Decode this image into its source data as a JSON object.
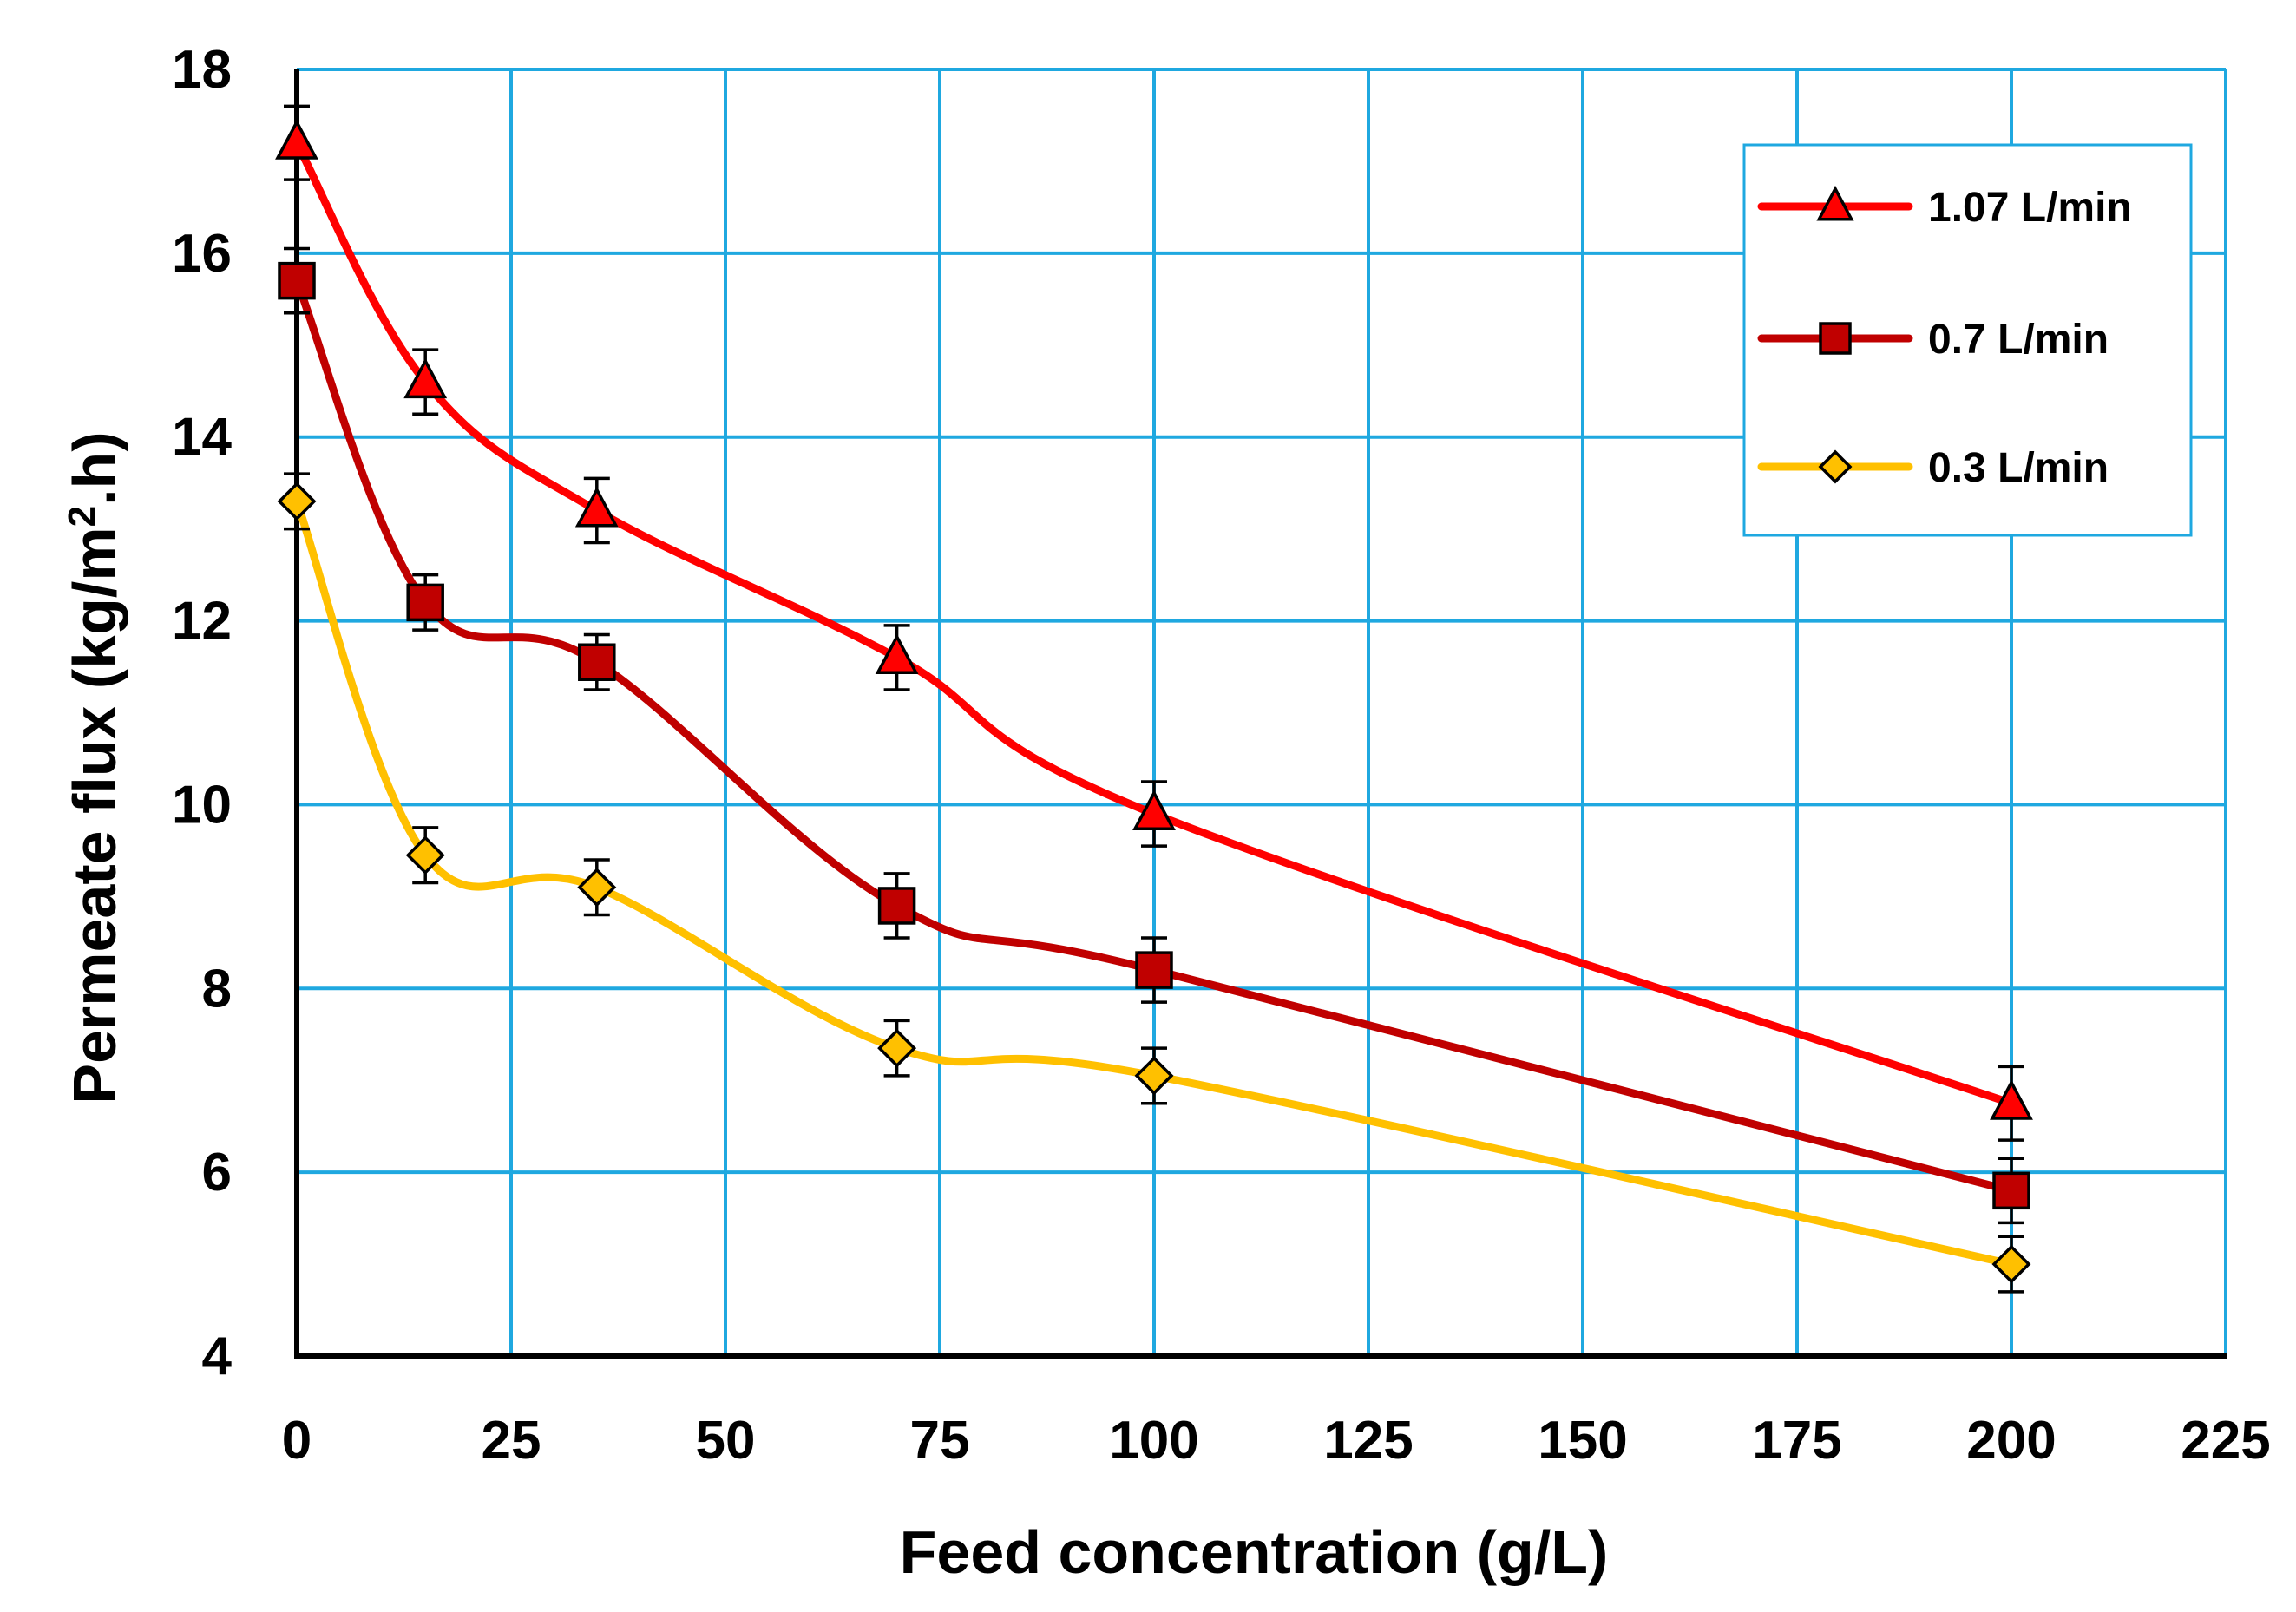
{
  "chart_data": {
    "type": "line",
    "title": "",
    "xlabel": "Feed concentration (g/L)",
    "ylabel_parts": [
      "Permeate flux (kg/m",
      "2",
      ".h)"
    ],
    "xlim": [
      0,
      225
    ],
    "ylim": [
      4,
      18
    ],
    "x_ticks": [
      0,
      25,
      50,
      75,
      100,
      125,
      150,
      175,
      200,
      225
    ],
    "y_ticks": [
      4,
      6,
      8,
      10,
      12,
      14,
      16,
      18
    ],
    "grid": true,
    "legend_position": "top-right",
    "x": [
      0,
      15,
      35,
      70,
      100,
      200
    ],
    "series": [
      {
        "name": "1.07 L/min",
        "marker": "triangle",
        "color": "#ff0000",
        "marker_fill": "#ff0000",
        "values": [
          17.2,
          14.6,
          13.2,
          11.6,
          9.9,
          6.75
        ],
        "errors": [
          0.4,
          0.35,
          0.35,
          0.35,
          0.35,
          0.4
        ]
      },
      {
        "name": "0.7 L/min",
        "marker": "square",
        "color": "#c00000",
        "marker_fill": "#c00000",
        "values": [
          15.7,
          12.2,
          11.55,
          8.9,
          8.2,
          5.8
        ],
        "errors": [
          0.35,
          0.3,
          0.3,
          0.35,
          0.35,
          0.35
        ]
      },
      {
        "name": "0.3 L/min",
        "marker": "diamond",
        "color": "#ffc000",
        "marker_fill": "#ffc000",
        "values": [
          13.3,
          9.45,
          9.1,
          7.35,
          7.05,
          5.0
        ],
        "errors": [
          0.3,
          0.3,
          0.3,
          0.3,
          0.3,
          0.3
        ]
      }
    ]
  },
  "colors": {
    "grid": "#1fa8e0",
    "axis": "#000000",
    "legend_border": "#1fa8e0"
  }
}
